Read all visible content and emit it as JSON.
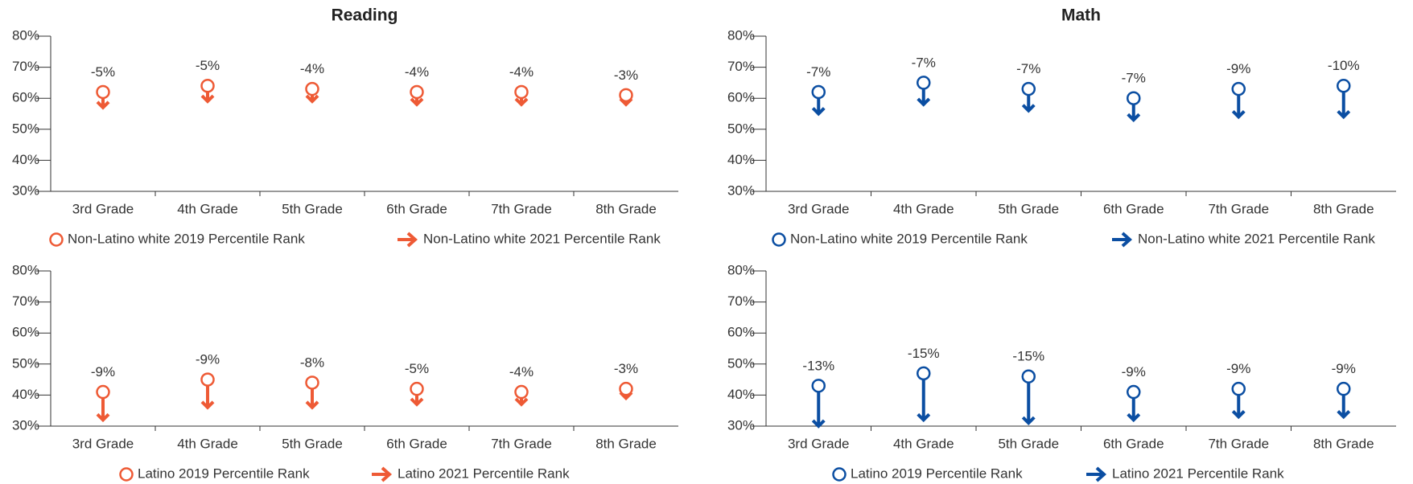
{
  "chart_data": [
    {
      "type": "arrow",
      "title": "Reading",
      "color": "#ee5a35",
      "categories": [
        "3rd Grade",
        "4th Grade",
        "5th Grade",
        "6th Grade",
        "7th Grade",
        "8th Grade"
      ],
      "series": [
        {
          "name": "Non-Latino white 2019 Percentile Rank",
          "values": [
            62,
            64,
            63,
            62,
            62,
            61
          ]
        },
        {
          "name": "Non-Latino white 2021 Percentile Rank",
          "values": [
            57,
            59,
            59,
            58,
            58,
            58
          ]
        }
      ],
      "changes": [
        -5,
        -5,
        -4,
        -4,
        -4,
        -3
      ],
      "change_labels": [
        "-5%",
        "-5%",
        "-4%",
        "-4%",
        "-4%",
        "-3%"
      ],
      "ylim": [
        30,
        80
      ],
      "yticks": [
        {
          "value": 30,
          "label": "30%"
        },
        {
          "value": 40,
          "label": "40%"
        },
        {
          "value": 50,
          "label": "50%"
        },
        {
          "value": 60,
          "label": "60%"
        },
        {
          "value": 70,
          "label": "70%"
        },
        {
          "value": 80,
          "label": "80%"
        }
      ]
    },
    {
      "type": "arrow",
      "title": "Math",
      "color": "#0b4ea2",
      "categories": [
        "3rd Grade",
        "4th Grade",
        "5th Grade",
        "6th Grade",
        "7th Grade",
        "8th Grade"
      ],
      "series": [
        {
          "name": "Non-Latino white 2019 Percentile Rank",
          "values": [
            62,
            65,
            63,
            60,
            63,
            64
          ]
        },
        {
          "name": "Non-Latino white 2021 Percentile Rank",
          "values": [
            55,
            58,
            56,
            53,
            54,
            54
          ]
        }
      ],
      "changes": [
        -7,
        -7,
        -7,
        -7,
        -9,
        -10
      ],
      "change_labels": [
        "-7%",
        "-7%",
        "-7%",
        "-7%",
        "-9%",
        "-10%"
      ],
      "ylim": [
        30,
        80
      ],
      "yticks": [
        {
          "value": 30,
          "label": "30%"
        },
        {
          "value": 40,
          "label": "40%"
        },
        {
          "value": 50,
          "label": "50%"
        },
        {
          "value": 60,
          "label": "60%"
        },
        {
          "value": 70,
          "label": "70%"
        },
        {
          "value": 80,
          "label": "80%"
        }
      ]
    },
    {
      "type": "arrow",
      "color": "#ee5a35",
      "categories": [
        "3rd Grade",
        "4th Grade",
        "5th Grade",
        "6th Grade",
        "7th Grade",
        "8th Grade"
      ],
      "series": [
        {
          "name": "Latino 2019 Percentile Rank",
          "values": [
            41,
            45,
            44,
            42,
            41,
            42
          ]
        },
        {
          "name": "Latino 2021 Percentile Rank",
          "values": [
            32,
            36,
            36,
            37,
            37,
            39
          ]
        }
      ],
      "changes": [
        -9,
        -9,
        -8,
        -5,
        -4,
        -3
      ],
      "change_labels": [
        "-9%",
        "-9%",
        "-8%",
        "-5%",
        "-4%",
        "-3%"
      ],
      "ylim": [
        30,
        80
      ],
      "yticks": [
        {
          "value": 30,
          "label": "30%"
        },
        {
          "value": 40,
          "label": "40%"
        },
        {
          "value": 50,
          "label": "50%"
        },
        {
          "value": 60,
          "label": "60%"
        },
        {
          "value": 70,
          "label": "70%"
        },
        {
          "value": 80,
          "label": "80%"
        }
      ]
    },
    {
      "type": "arrow",
      "color": "#0b4ea2",
      "categories": [
        "3rd Grade",
        "4th Grade",
        "5th Grade",
        "6th Grade",
        "7th Grade",
        "8th Grade"
      ],
      "series": [
        {
          "name": "Latino 2019 Percentile Rank",
          "values": [
            43,
            47,
            46,
            41,
            42,
            42
          ]
        },
        {
          "name": "Latino 2021 Percentile Rank",
          "values": [
            30,
            32,
            31,
            32,
            33,
            33
          ]
        }
      ],
      "changes": [
        -13,
        -15,
        -15,
        -9,
        -9,
        -9
      ],
      "change_labels": [
        "-13%",
        "-15%",
        "-15%",
        "-9%",
        "-9%",
        "-9%"
      ],
      "ylim": [
        30,
        80
      ],
      "yticks": [
        {
          "value": 30,
          "label": "30%"
        },
        {
          "value": 40,
          "label": "40%"
        },
        {
          "value": 50,
          "label": "50%"
        },
        {
          "value": 60,
          "label": "60%"
        },
        {
          "value": 70,
          "label": "70%"
        },
        {
          "value": 80,
          "label": "80%"
        }
      ]
    }
  ]
}
